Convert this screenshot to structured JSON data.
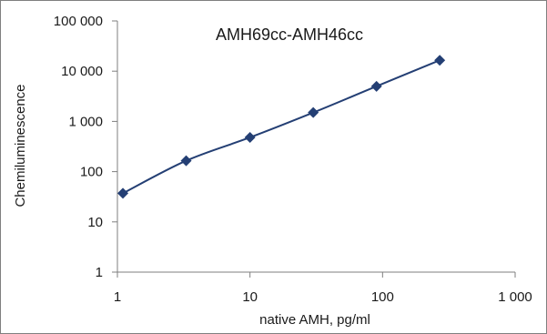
{
  "chart_data": {
    "type": "scatter",
    "title": "AMH69cc-AMH46cc",
    "xlabel": "native AMH, pg/ml",
    "ylabel": "Chemiluminescence",
    "x_scale": "log",
    "y_scale": "log",
    "xlim": [
      1,
      1000
    ],
    "ylim": [
      1,
      100000
    ],
    "x_ticks": [
      1,
      10,
      100,
      1000
    ],
    "x_tick_labels": [
      "1",
      "10",
      "100",
      "1 000"
    ],
    "y_ticks": [
      1,
      10,
      100,
      1000,
      10000,
      100000
    ],
    "y_tick_labels": [
      "1",
      "10",
      "100",
      "1 000",
      "10 000",
      "100 000"
    ],
    "grid": false,
    "legend": "none",
    "marker": "diamond",
    "line": "smooth",
    "color": "#243f74",
    "series": [
      {
        "x": [
          1.1,
          3.3,
          10,
          30,
          90,
          270
        ],
        "y": [
          37,
          165,
          480,
          1500,
          5000,
          16500
        ]
      }
    ]
  }
}
